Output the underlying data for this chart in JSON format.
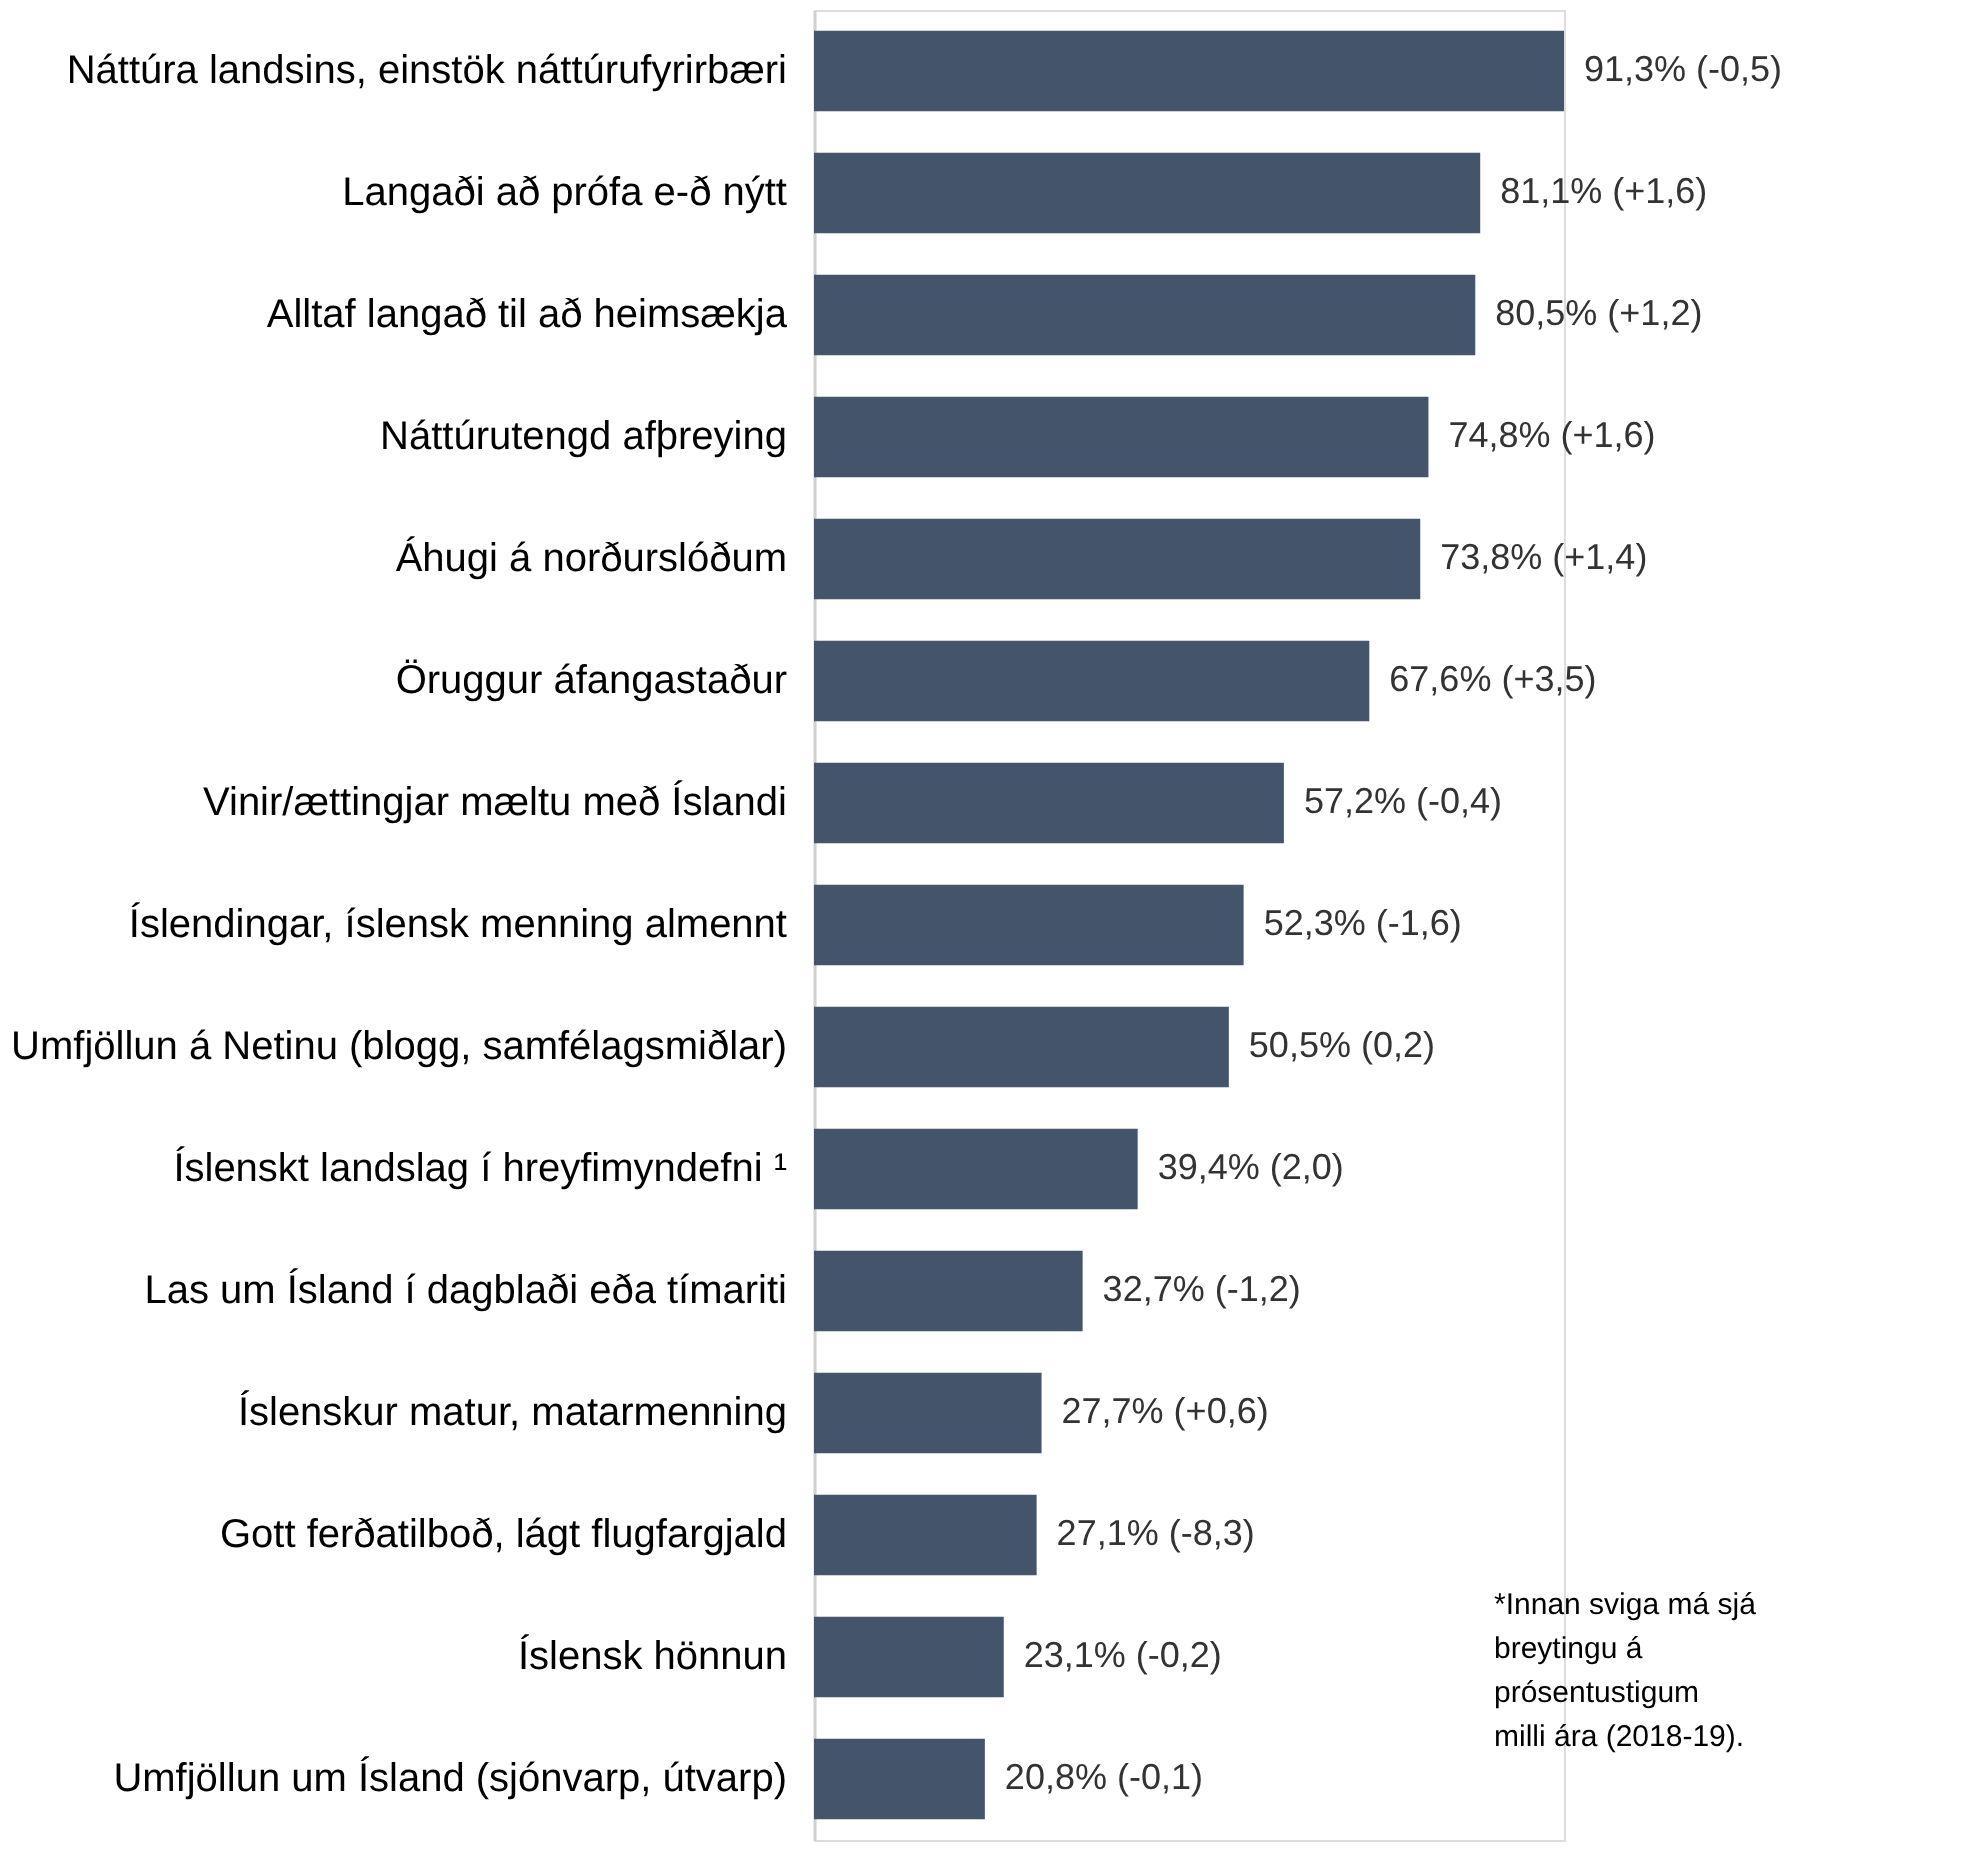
{
  "chart_data": {
    "type": "bar",
    "orientation": "horizontal",
    "categories": [
      "Náttúra landsins, einstök náttúrufyrirbæri",
      "Langaði að prófa e-ð nýtt",
      "Alltaf langað til að heimsækja",
      "Náttúrutengd afþreying",
      "Áhugi á norðurslóðum",
      "Öruggur áfangastaður",
      "Vinir/ættingjar mæltu með Íslandi",
      "Íslendingar, íslensk menning almennt",
      "Umfjöllun á Netinu (blogg, samfélagsmiðlar)",
      "Íslenskt landslag í hreyfimyndefni ¹",
      "Las um Ísland í dagblaði eða tímariti",
      "Íslenskur matur, matarmenning",
      "Gott ferðatilboð, lágt flugfargjald",
      "Íslensk hönnun",
      "Umfjöllun um Ísland (sjónvarp, útvarp)"
    ],
    "values": [
      91.3,
      81.1,
      80.5,
      74.8,
      73.8,
      67.6,
      57.2,
      52.3,
      50.5,
      39.4,
      32.7,
      27.7,
      27.1,
      23.1,
      20.8
    ],
    "value_labels": [
      "91,3% (-0,5)",
      "81,1% (+1,6)",
      "80,5% (+1,2)",
      "74,8% (+1,6)",
      "73,8% (+1,4)",
      "67,6% (+3,5)",
      "57,2% (-0,4)",
      "52,3% (-1,6)",
      "50,5% (0,2)",
      "39,4% (2,0)",
      "32,7% (-1,2)",
      "27,7% (+0,6)",
      "27,1% (-8,3)",
      "23,1% (-0,2)",
      "20,8% (-0,1)"
    ],
    "color": "#44546a",
    "grid": false,
    "tick_labels": "y",
    "annotations": [
      "*Innan sviga má sjá\nbreytingu á\nprósentustigum\nmilli ára (2018-19)."
    ]
  }
}
